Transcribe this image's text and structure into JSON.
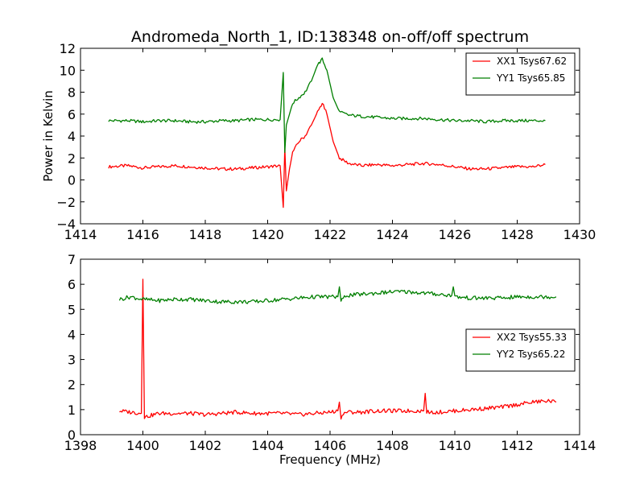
{
  "chart_data": [
    {
      "type": "line",
      "title": "Andromeda_North_1, ID:138348 on-off/off spectrum",
      "xlabel": "",
      "ylabel": "Power in Kelvin",
      "xlim": [
        1414,
        1430
      ],
      "ylim": [
        -4,
        12
      ],
      "xticks": [
        1414,
        1416,
        1418,
        1420,
        1422,
        1424,
        1426,
        1428,
        1430
      ],
      "yticks": [
        -4,
        -2,
        0,
        2,
        4,
        6,
        8,
        10,
        12
      ],
      "grid": false,
      "legend_position": "top-right",
      "series": [
        {
          "name": "XX1 Tsys67.62",
          "color": "#ff0000",
          "x": [
            1414.9,
            1415.5,
            1416.0,
            1416.5,
            1417.0,
            1417.5,
            1418.0,
            1418.5,
            1419.0,
            1419.5,
            1420.0,
            1420.4,
            1420.5,
            1420.55,
            1420.6,
            1420.7,
            1420.8,
            1421.0,
            1421.2,
            1421.4,
            1421.6,
            1421.75,
            1421.9,
            1422.1,
            1422.3,
            1422.6,
            1423.0,
            1423.5,
            1424.0,
            1424.5,
            1425.0,
            1425.5,
            1426.0,
            1426.5,
            1427.0,
            1427.5,
            1428.0,
            1428.5,
            1428.9
          ],
          "y": [
            1.2,
            1.3,
            1.1,
            1.2,
            1.3,
            1.2,
            1.1,
            1.0,
            1.0,
            1.1,
            1.2,
            1.3,
            -2.5,
            3.0,
            -1.0,
            1.0,
            2.5,
            3.5,
            4.0,
            5.0,
            6.2,
            7.0,
            6.0,
            3.5,
            2.0,
            1.5,
            1.3,
            1.4,
            1.3,
            1.4,
            1.5,
            1.4,
            1.2,
            1.0,
            1.0,
            1.1,
            1.2,
            1.2,
            1.4
          ]
        },
        {
          "name": "YY1 Tsys65.85",
          "color": "#007f00",
          "x": [
            1414.9,
            1415.5,
            1416.0,
            1416.5,
            1417.0,
            1417.5,
            1418.0,
            1418.5,
            1419.0,
            1419.5,
            1420.0,
            1420.4,
            1420.5,
            1420.55,
            1420.6,
            1420.7,
            1420.8,
            1421.0,
            1421.2,
            1421.4,
            1421.6,
            1421.75,
            1421.9,
            1422.1,
            1422.3,
            1422.6,
            1423.0,
            1423.5,
            1424.0,
            1424.5,
            1425.0,
            1425.5,
            1426.0,
            1426.5,
            1427.0,
            1427.5,
            1428.0,
            1428.5,
            1428.9
          ],
          "y": [
            5.4,
            5.4,
            5.3,
            5.4,
            5.4,
            5.3,
            5.3,
            5.4,
            5.4,
            5.5,
            5.5,
            5.5,
            9.8,
            2.5,
            5.0,
            6.0,
            7.0,
            7.5,
            8.0,
            9.0,
            10.5,
            11.0,
            10.0,
            7.5,
            6.2,
            5.9,
            5.8,
            5.7,
            5.6,
            5.6,
            5.6,
            5.5,
            5.4,
            5.4,
            5.3,
            5.4,
            5.4,
            5.4,
            5.4
          ]
        }
      ]
    },
    {
      "type": "line",
      "title": "",
      "xlabel": "Frequency (MHz)",
      "ylabel": "",
      "xlim": [
        1398,
        1414
      ],
      "ylim": [
        0,
        7
      ],
      "xticks": [
        1398,
        1400,
        1402,
        1404,
        1406,
        1408,
        1410,
        1412,
        1414
      ],
      "yticks": [
        0,
        1,
        2,
        3,
        4,
        5,
        6,
        7
      ],
      "grid": false,
      "legend_position": "center-right",
      "series": [
        {
          "name": "XX2 Tsys55.33",
          "color": "#ff0000",
          "x": [
            1399.25,
            1399.6,
            1399.95,
            1400.0,
            1400.05,
            1400.5,
            1401.0,
            1401.5,
            1402.0,
            1402.5,
            1403.0,
            1403.5,
            1404.0,
            1404.5,
            1405.0,
            1405.5,
            1406.0,
            1406.25,
            1406.3,
            1406.35,
            1406.5,
            1407.0,
            1407.5,
            1408.0,
            1408.5,
            1409.0,
            1409.05,
            1409.1,
            1409.5,
            1410.0,
            1410.5,
            1411.0,
            1411.5,
            1412.0,
            1412.5,
            1413.0,
            1413.25
          ],
          "y": [
            0.95,
            0.9,
            0.85,
            6.2,
            0.7,
            0.85,
            0.85,
            0.85,
            0.8,
            0.85,
            0.9,
            0.85,
            0.85,
            0.85,
            0.8,
            0.85,
            0.9,
            0.95,
            1.3,
            0.7,
            0.9,
            0.9,
            0.95,
            0.95,
            0.95,
            0.95,
            1.65,
            0.9,
            0.9,
            0.95,
            1.0,
            1.05,
            1.1,
            1.2,
            1.3,
            1.35,
            1.3
          ]
        },
        {
          "name": "YY2 Tsys65.22",
          "color": "#007f00",
          "x": [
            1399.25,
            1399.6,
            1400.0,
            1400.5,
            1401.0,
            1401.5,
            1402.0,
            1402.5,
            1403.0,
            1403.5,
            1404.0,
            1404.5,
            1405.0,
            1405.5,
            1406.0,
            1406.25,
            1406.3,
            1406.35,
            1406.5,
            1407.0,
            1407.5,
            1408.0,
            1408.5,
            1409.0,
            1409.5,
            1409.9,
            1409.95,
            1410.0,
            1410.5,
            1411.0,
            1411.5,
            1412.0,
            1412.5,
            1413.0,
            1413.25
          ],
          "y": [
            5.4,
            5.5,
            5.4,
            5.35,
            5.4,
            5.4,
            5.35,
            5.3,
            5.3,
            5.3,
            5.35,
            5.4,
            5.45,
            5.5,
            5.5,
            5.5,
            5.9,
            5.3,
            5.55,
            5.6,
            5.65,
            5.7,
            5.7,
            5.65,
            5.6,
            5.55,
            5.9,
            5.5,
            5.45,
            5.45,
            5.45,
            5.5,
            5.5,
            5.5,
            5.5
          ]
        }
      ]
    }
  ]
}
